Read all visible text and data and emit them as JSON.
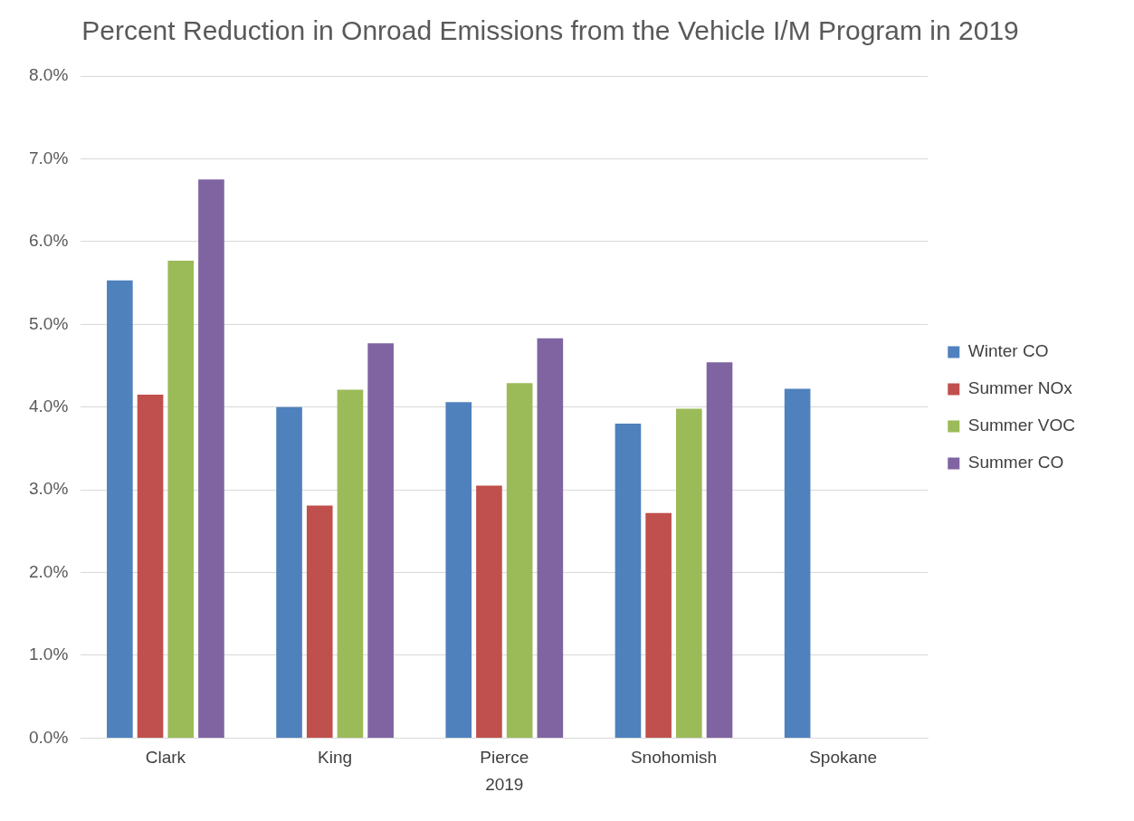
{
  "chart_data": {
    "type": "bar",
    "title": "Percent Reduction in Onroad Emissions from the Vehicle I/M Program in 2019",
    "xlabel": "2019",
    "categories": [
      "Clark",
      "King",
      "Pierce",
      "Snohomish",
      "Spokane"
    ],
    "series": [
      {
        "name": "Winter CO",
        "color": "#4f81bd",
        "values": [
          5.53,
          4.0,
          4.06,
          3.8,
          4.22
        ]
      },
      {
        "name": "Summer NOx",
        "color": "#c0504d",
        "values": [
          4.15,
          2.81,
          3.05,
          2.72,
          null
        ]
      },
      {
        "name": "Summer VOC",
        "color": "#9bbb59",
        "values": [
          5.77,
          4.21,
          4.29,
          3.98,
          null
        ]
      },
      {
        "name": "Summer CO",
        "color": "#8064a2",
        "values": [
          6.75,
          4.77,
          4.83,
          4.54,
          null
        ]
      }
    ],
    "ylim": [
      0,
      8
    ],
    "yticks": [
      {
        "value": 0,
        "label": "0.0%"
      },
      {
        "value": 1,
        "label": "1.0%"
      },
      {
        "value": 2,
        "label": "2.0%"
      },
      {
        "value": 3,
        "label": "3.0%"
      },
      {
        "value": 4,
        "label": "4.0%"
      },
      {
        "value": 5,
        "label": "5.0%"
      },
      {
        "value": 6,
        "label": "6.0%"
      },
      {
        "value": 7,
        "label": "7.0%"
      },
      {
        "value": 8,
        "label": "8.0%"
      }
    ],
    "grid": "y",
    "legend": "right"
  }
}
